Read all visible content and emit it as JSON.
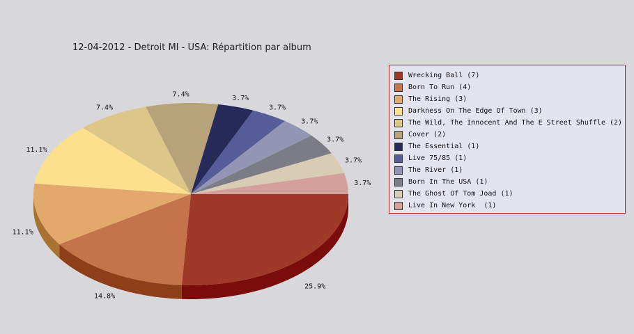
{
  "chart_data": {
    "type": "pie",
    "title": "12-04-2012 - Detroit MI - USA:  Répartition par album",
    "slices": [
      {
        "label": "Wrecking Ball (7)",
        "value": 7,
        "pct": "25.9%",
        "color": "#a03a28",
        "side": "#7a0c0c"
      },
      {
        "label": "Born To Run (4)",
        "value": 4,
        "pct": "14.8%",
        "color": "#c4734a",
        "side": "#8e3e18"
      },
      {
        "label": "The Rising (3)",
        "value": 3,
        "pct": "11.1%",
        "color": "#e2a96a",
        "side": "#a87232"
      },
      {
        "label": "Darkness On The Edge Of Town (3)",
        "value": 3,
        "pct": "11.1%",
        "color": "#fde08e",
        "side": "#c0a050"
      },
      {
        "label": "The Wild, The Innocent And The E Street Shuffle (2)",
        "value": 2,
        "pct": "7.4%",
        "color": "#dcc688",
        "side": "#a89050"
      },
      {
        "label": "Cover (2)",
        "value": 2,
        "pct": "7.4%",
        "color": "#b8a27a",
        "side": "#806a44"
      },
      {
        "label": "The Essential (1)",
        "value": 1,
        "pct": "3.7%",
        "color": "#252a58",
        "side": "#101430"
      },
      {
        "label": "Live 75/85 (1)",
        "value": 1,
        "pct": "3.7%",
        "color": "#555c98",
        "side": "#30366a"
      },
      {
        "label": "The River (1)",
        "value": 1,
        "pct": "3.7%",
        "color": "#9494b4",
        "side": "#646484"
      },
      {
        "label": "Born In The USA (1)",
        "value": 1,
        "pct": "3.7%",
        "color": "#7c7c86",
        "side": "#54545c"
      },
      {
        "label": "The Ghost Of Tom Joad (1)",
        "value": 1,
        "pct": "3.7%",
        "color": "#d8ccb4",
        "side": "#a89c84"
      },
      {
        "label": "Live In New York  (1)",
        "value": 1,
        "pct": "3.7%",
        "color": "#d4a09a",
        "side": "#a06c66"
      }
    ]
  }
}
